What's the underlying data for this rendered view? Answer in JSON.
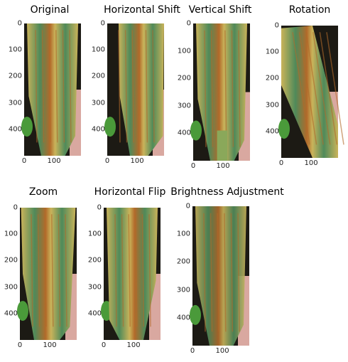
{
  "panels": [
    {
      "title": "Original",
      "y_ticks": [
        "0",
        "100",
        "200",
        "300",
        "400"
      ],
      "x_ticks": [
        "0",
        "100"
      ],
      "variant": "original"
    },
    {
      "title": "Horizontal Shift",
      "y_ticks": [
        "0",
        "100",
        "200",
        "300",
        "400"
      ],
      "x_ticks": [
        "0",
        "100"
      ],
      "variant": "hshift"
    },
    {
      "title": "Vertical Shift",
      "y_ticks": [
        "0",
        "100",
        "200",
        "300",
        "400"
      ],
      "x_ticks": [
        "0",
        "100"
      ],
      "variant": "vshift"
    },
    {
      "title": "Rotation",
      "y_ticks": [
        "0",
        "100",
        "200",
        "300",
        "400"
      ],
      "x_ticks": [
        "0",
        "100"
      ],
      "variant": "rotation"
    },
    {
      "title": "Zoom",
      "y_ticks": [
        "0",
        "100",
        "200",
        "300",
        "400"
      ],
      "x_ticks": [
        "0",
        "100"
      ],
      "variant": "zoom"
    },
    {
      "title": "Horizontal Flip",
      "y_ticks": [
        "0",
        "100",
        "200",
        "300",
        "400"
      ],
      "x_ticks": [
        "0",
        "100"
      ],
      "variant": "hflip"
    },
    {
      "title": "Brightness Adjustment",
      "y_ticks": [
        "0",
        "100",
        "200",
        "300",
        "400"
      ],
      "x_ticks": [
        "0",
        "100"
      ],
      "variant": "bright"
    }
  ],
  "colors": {
    "leaf_green": "#4f8a5a",
    "leaf_yellow": "#c9b35a",
    "rust": "#b26a2a",
    "dark_bg": "#1c1a14",
    "pink_bg": "#d9a8a0"
  }
}
